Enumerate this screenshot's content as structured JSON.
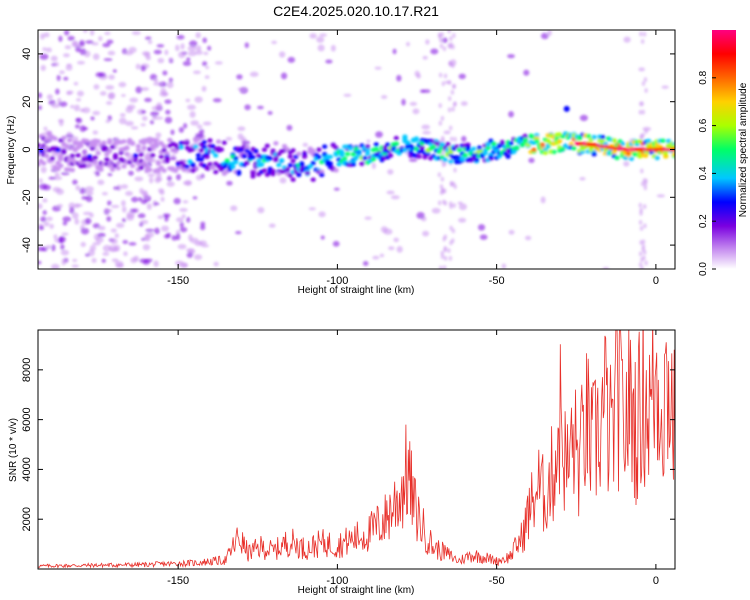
{
  "figure": {
    "title": "C2E4.2025.020.10.17.R21"
  },
  "chart_data": [
    {
      "type": "heatmap",
      "xlabel": "Height of straight line (km)",
      "ylabel": "Frequency (Hz)",
      "xlim": [
        -194,
        6
      ],
      "ylim": [
        -50,
        50
      ],
      "xticks": [
        -150,
        -100,
        -50,
        0
      ],
      "yticks": [
        -40,
        -20,
        0,
        20,
        40
      ],
      "grid": false,
      "ridge": {
        "description_points_x": [
          -190,
          -170,
          -150,
          -140,
          -130,
          -120,
          -110,
          -100,
          -90,
          -80,
          -70,
          -60,
          -50,
          -40,
          -30,
          -20,
          -10,
          0,
          5
        ],
        "description_points_y": [
          -1,
          -3,
          -2,
          -2,
          -5,
          -4,
          -7,
          -3,
          -2,
          2,
          0,
          -2,
          0,
          2,
          3,
          2,
          0,
          0,
          0
        ]
      },
      "colorbar": {
        "label": "Normalized spectral amplitude",
        "range": [
          0,
          1
        ],
        "ticks": [
          0.0,
          0.2,
          0.4,
          0.6,
          0.8
        ],
        "colormap": [
          "#ffffff",
          "#c890f0",
          "#7a00e0",
          "#0000ff",
          "#00c8ff",
          "#00ff66",
          "#aaff00",
          "#ffd000",
          "#ff6600",
          "#ff0000",
          "#ff0080"
        ]
      }
    },
    {
      "type": "line",
      "xlabel": "Height of straight line (km)",
      "ylabel": "SNR (10 * v/v)",
      "xlim": [
        -194,
        6
      ],
      "ylim": [
        0,
        9600
      ],
      "xticks": [
        -150,
        -100,
        -50,
        0
      ],
      "yticks": [
        2000,
        4000,
        6000,
        8000
      ],
      "grid": false,
      "series": [
        {
          "color": "#e8302a",
          "x": [
            -194,
            -180,
            -160,
            -145,
            -135,
            -131,
            -128,
            -124,
            -120,
            -115,
            -110,
            -105,
            -100,
            -95,
            -90,
            -85,
            -80,
            -78,
            -76,
            -73,
            -70,
            -66,
            -62,
            -58,
            -54,
            -50,
            -46,
            -42,
            -40,
            -37,
            -35,
            -32,
            -30,
            -28,
            -26,
            -24,
            -22,
            -20,
            -18,
            -16,
            -14,
            -12,
            -10,
            -8,
            -6,
            -4,
            -2,
            0,
            2,
            4,
            6
          ],
          "y": [
            150,
            180,
            220,
            300,
            450,
            1600,
            800,
            1100,
            900,
            1400,
            1000,
            1300,
            1200,
            1500,
            1800,
            2500,
            3800,
            5000,
            3200,
            2000,
            1100,
            800,
            400,
            700,
            600,
            400,
            600,
            1600,
            2800,
            4200,
            3600,
            5000,
            7700,
            4800,
            6500,
            5200,
            7500,
            6000,
            6900,
            8200,
            6500,
            8900,
            7200,
            8400,
            7000,
            9000,
            8000,
            9600,
            8500,
            9500,
            7000
          ]
        }
      ]
    }
  ]
}
